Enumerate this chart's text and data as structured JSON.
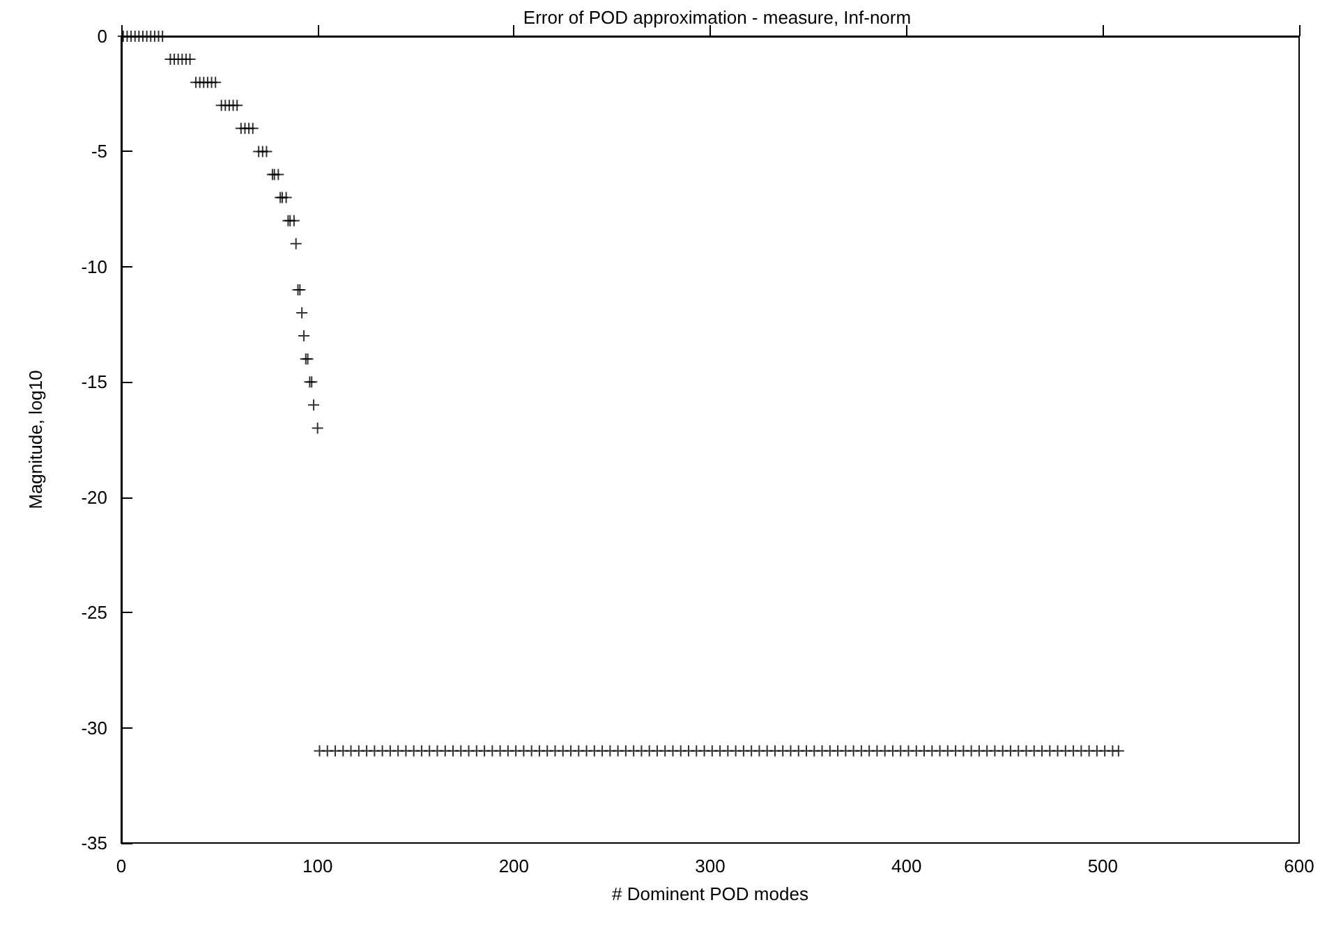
{
  "chart_data": {
    "type": "scatter",
    "title": "Error of POD approximation - measure, Inf-norm",
    "xlabel": "# Dominent POD modes",
    "ylabel": "Magnitude, log10",
    "x": [
      1,
      3,
      5,
      7,
      9,
      11,
      13,
      15,
      17,
      19,
      21,
      25,
      27,
      29,
      31,
      33,
      35,
      38,
      40,
      42,
      44,
      46,
      48,
      51,
      53,
      55,
      57,
      59,
      61,
      63,
      65,
      67,
      70,
      72,
      74,
      77,
      78,
      80,
      81,
      82,
      84,
      85,
      86,
      88,
      89,
      90,
      91,
      92,
      93,
      94,
      95,
      96,
      97,
      98,
      100,
      101,
      105,
      109,
      113,
      117,
      121,
      125,
      129,
      133,
      137,
      141,
      145,
      149,
      153,
      157,
      161,
      165,
      169,
      173,
      177,
      181,
      185,
      189,
      193,
      197,
      201,
      205,
      209,
      213,
      217,
      221,
      225,
      229,
      233,
      237,
      241,
      245,
      249,
      253,
      257,
      261,
      265,
      269,
      273,
      277,
      281,
      285,
      289,
      293,
      297,
      301,
      305,
      309,
      313,
      317,
      321,
      325,
      329,
      333,
      337,
      341,
      345,
      349,
      353,
      357,
      361,
      365,
      369,
      373,
      377,
      381,
      385,
      389,
      393,
      397,
      401,
      405,
      409,
      413,
      417,
      421,
      425,
      429,
      433,
      437,
      441,
      445,
      449,
      453,
      457,
      461,
      465,
      469,
      473,
      477,
      481,
      485,
      489,
      493,
      497,
      501,
      505,
      508
    ],
    "values": [
      0,
      0,
      0,
      0,
      0,
      0,
      0,
      0,
      0,
      0,
      0,
      -1,
      -1,
      -1,
      -1,
      -1,
      -1,
      -2,
      -2,
      -2,
      -2,
      -2,
      -2,
      -3,
      -3,
      -3,
      -3,
      -3,
      -4,
      -4,
      -4,
      -4,
      -5,
      -5,
      -5,
      -6,
      -6,
      -6,
      -7,
      -7,
      -7,
      -8,
      -8,
      -8,
      -9,
      -11,
      -11,
      -12,
      -13,
      -14,
      -14,
      -15,
      -15,
      -16,
      -17,
      -31,
      -31,
      -31,
      -31,
      -31,
      -31,
      -31,
      -31,
      -31,
      -31,
      -31,
      -31,
      -31,
      -31,
      -31,
      -31,
      -31,
      -31,
      -31,
      -31,
      -31,
      -31,
      -31,
      -31,
      -31,
      -31,
      -31,
      -31,
      -31,
      -31,
      -31,
      -31,
      -31,
      -31,
      -31,
      -31,
      -31,
      -31,
      -31,
      -31,
      -31,
      -31,
      -31,
      -31,
      -31,
      -31,
      -31,
      -31,
      -31,
      -31,
      -31,
      -31,
      -31,
      -31,
      -31,
      -31,
      -31,
      -31,
      -31,
      -31,
      -31,
      -31,
      -31,
      -31,
      -31,
      -31,
      -31,
      -31,
      -31,
      -31,
      -31,
      -31,
      -31,
      -31,
      -31,
      -31,
      -31,
      -31,
      -31,
      -31,
      -31,
      -31,
      -31,
      -31,
      -31,
      -31,
      -31,
      -31,
      -31,
      -31,
      -31,
      -31,
      -31,
      -31,
      -31,
      -31,
      -31,
      -31,
      -31,
      -31,
      -31,
      -31,
      -31
    ],
    "color": "#000000",
    "marker": "cross",
    "xlim": [
      0,
      600
    ],
    "xticks": [
      0,
      100,
      200,
      300,
      400,
      500,
      600
    ],
    "ylim": [
      -35,
      0
    ],
    "yticks": [
      -35,
      -30,
      -25,
      -20,
      -15,
      -10,
      -5,
      0
    ],
    "grid": false
  }
}
